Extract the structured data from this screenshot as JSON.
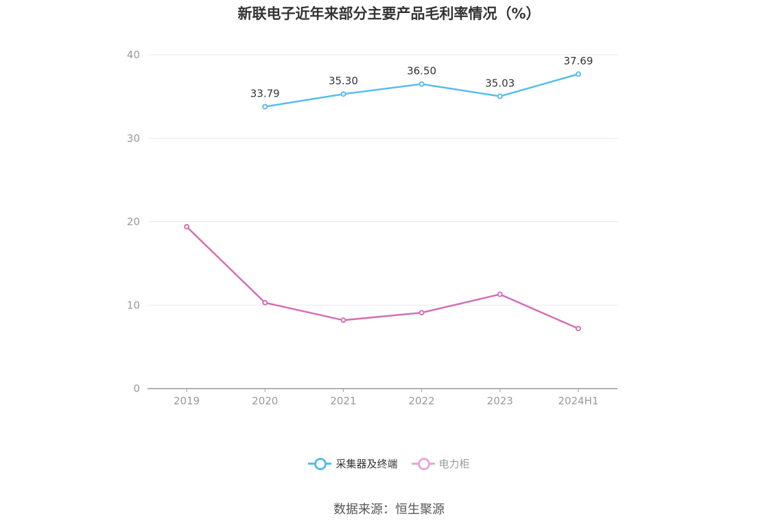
{
  "chart_data": {
    "type": "line",
    "title": "新联电子近年来部分主要产品毛利率情况（%）",
    "categories": [
      "2019",
      "2020",
      "2021",
      "2022",
      "2023",
      "2024H1"
    ],
    "ylim": [
      0,
      40
    ],
    "yticks": [
      "0",
      "10",
      "20",
      "30",
      "40"
    ],
    "grid": true,
    "legend": "bottom",
    "series": [
      {
        "name": "采集器及终端",
        "color": "#58bcee",
        "values": [
          null,
          33.79,
          35.3,
          36.5,
          35.03,
          37.69
        ],
        "labels": [
          "",
          "33.79",
          "35.30",
          "36.50",
          "35.03",
          "37.69"
        ]
      },
      {
        "name": "电力柜",
        "color": "#d36fb4",
        "legend_color": "#eaa7d6",
        "values": [
          19.4,
          10.3,
          8.2,
          9.1,
          11.3,
          7.2
        ],
        "labels": []
      }
    ]
  },
  "source": "数据来源：恒生聚源"
}
